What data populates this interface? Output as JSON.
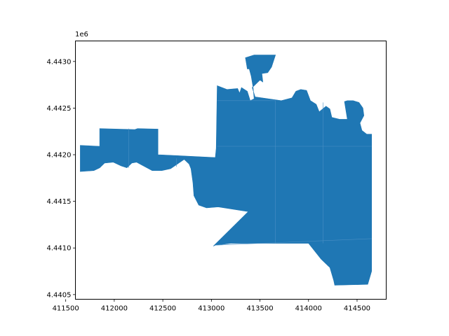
{
  "chart_data": {
    "type": "map",
    "title": "",
    "xlabel": "",
    "ylabel": "",
    "xlim": [
      411600,
      414800
    ],
    "ylim": [
      4440450,
      4443220
    ],
    "y_offset_label": "1e6",
    "grid": false,
    "fill_color": "#1f77b4",
    "boundary_color": "#4a8fc4",
    "x_ticks": [
      {
        "value": 411500,
        "label": "411500"
      },
      {
        "value": 412000,
        "label": "412000"
      },
      {
        "value": 412500,
        "label": "412500"
      },
      {
        "value": 413000,
        "label": "413000"
      },
      {
        "value": 413500,
        "label": "413500"
      },
      {
        "value": 414000,
        "label": "414000"
      },
      {
        "value": 414500,
        "label": "414500"
      }
    ],
    "y_ticks": [
      {
        "value": 4440500,
        "label": "4.4405"
      },
      {
        "value": 4441000,
        "label": "4.4410"
      },
      {
        "value": 4441500,
        "label": "4.4415"
      },
      {
        "value": 4442000,
        "label": "4.4420"
      },
      {
        "value": 4442500,
        "label": "4.4425"
      },
      {
        "value": 4443000,
        "label": "4.4430"
      }
    ],
    "outline": [
      [
        411650,
        4442100
      ],
      [
        411850,
        4442090
      ],
      [
        411850,
        4442280
      ],
      [
        412210,
        4442270
      ],
      [
        412240,
        4442280
      ],
      [
        412450,
        4442275
      ],
      [
        412450,
        4442000
      ],
      [
        413040,
        4441970
      ],
      [
        413050,
        4442070
      ],
      [
        413060,
        4442740
      ],
      [
        413160,
        4442700
      ],
      [
        413270,
        4442710
      ],
      [
        413290,
        4442660
      ],
      [
        413310,
        4442720
      ],
      [
        413370,
        4442680
      ],
      [
        413400,
        4442580
      ],
      [
        413440,
        4442600
      ],
      [
        413430,
        4442720
      ],
      [
        413410,
        4442840
      ],
      [
        413390,
        4442920
      ],
      [
        413370,
        4442920
      ],
      [
        413350,
        4443040
      ],
      [
        413440,
        4443070
      ],
      [
        413660,
        4443070
      ],
      [
        413620,
        4442940
      ],
      [
        413580,
        4442880
      ],
      [
        413520,
        4442870
      ],
      [
        413530,
        4442780
      ],
      [
        413500,
        4442800
      ],
      [
        413420,
        4442720
      ],
      [
        413450,
        4442620
      ],
      [
        413720,
        4442580
      ],
      [
        413830,
        4442610
      ],
      [
        413870,
        4442680
      ],
      [
        413920,
        4442700
      ],
      [
        413980,
        4442690
      ],
      [
        414020,
        4442580
      ],
      [
        414080,
        4442540
      ],
      [
        414110,
        4442460
      ],
      [
        414180,
        4442520
      ],
      [
        414220,
        4442490
      ],
      [
        414240,
        4442400
      ],
      [
        414320,
        4442380
      ],
      [
        414400,
        4442380
      ],
      [
        414370,
        4442570
      ],
      [
        414400,
        4442580
      ],
      [
        414460,
        4442580
      ],
      [
        414520,
        4442560
      ],
      [
        414560,
        4442500
      ],
      [
        414570,
        4442420
      ],
      [
        414530,
        4442340
      ],
      [
        414550,
        4442260
      ],
      [
        414600,
        4442220
      ],
      [
        414650,
        4442220
      ],
      [
        414650,
        4441100
      ],
      [
        414650,
        4440750
      ],
      [
        414610,
        4440610
      ],
      [
        414270,
        4440600
      ],
      [
        414260,
        4440650
      ],
      [
        414220,
        4440790
      ],
      [
        414130,
        4440880
      ],
      [
        414000,
        4441050
      ],
      [
        413650,
        4441050
      ],
      [
        413200,
        4441050
      ],
      [
        413040,
        4441030
      ],
      [
        413020,
        4441020
      ],
      [
        413380,
        4441390
      ],
      [
        413070,
        4441440
      ],
      [
        412950,
        4441430
      ],
      [
        412870,
        4441460
      ],
      [
        412820,
        4441560
      ],
      [
        412810,
        4441700
      ],
      [
        412790,
        4441850
      ],
      [
        412770,
        4441900
      ],
      [
        412720,
        4441950
      ],
      [
        412580,
        4441850
      ],
      [
        412490,
        4441830
      ],
      [
        412390,
        4441830
      ],
      [
        412300,
        4441880
      ],
      [
        412230,
        4441920
      ],
      [
        412180,
        4441910
      ],
      [
        412130,
        4441860
      ],
      [
        412070,
        4441880
      ],
      [
        411990,
        4441920
      ],
      [
        411900,
        4441910
      ],
      [
        411850,
        4441860
      ],
      [
        411790,
        4441830
      ],
      [
        411650,
        4441820
      ]
    ],
    "boundaries": [
      [
        [
          413060,
          4442090
        ],
        [
          414650,
          4442090
        ]
      ],
      [
        [
          413050,
          4441030
        ],
        [
          414650,
          4441100
        ]
      ],
      [
        [
          413060,
          4442580
        ],
        [
          413660,
          4442580
        ]
      ],
      [
        [
          413660,
          4442580
        ],
        [
          413660,
          4441050
        ]
      ],
      [
        [
          414150,
          4442560
        ],
        [
          414150,
          4441050
        ]
      ],
      [
        [
          412150,
          4442280
        ],
        [
          412150,
          4441860
        ]
      ],
      [
        [
          412640,
          4441960
        ],
        [
          412640,
          4441870
        ]
      ]
    ]
  }
}
